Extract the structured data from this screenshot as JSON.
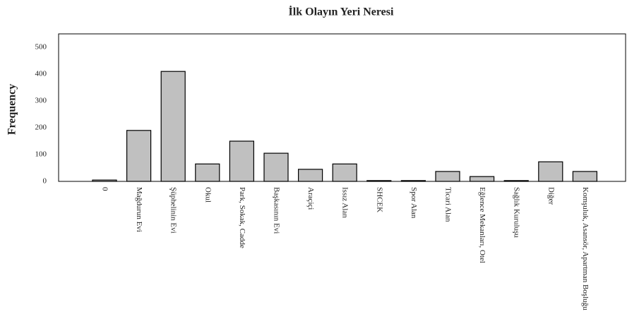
{
  "chart_data": {
    "type": "bar",
    "title": "İlk Olayın Yeri Neresi",
    "ylabel": "Frequency",
    "categories": [
      "0",
      "Mağdurun Evi",
      "Şüphelinin Evi",
      "Okul",
      "Park, Sokak, Cadde",
      "Başkasının Evi",
      "Araçiçi",
      "Issız Alan",
      "SHCEK",
      "Spor Alan",
      "Ticari Alan",
      "Eğlence Mekanları, Otel",
      "Sağlık Kuruluşu",
      "Diğer",
      "Komşuluk, Asansör, Apartman Boşluğu"
    ],
    "values": [
      5,
      190,
      410,
      65,
      150,
      105,
      45,
      65,
      3,
      3,
      37,
      18,
      3,
      73,
      37
    ],
    "color": "#c0c0c0",
    "ylim": [
      0,
      550
    ],
    "yticks": [
      0,
      100,
      200,
      300,
      400,
      500
    ],
    "grid": false
  }
}
